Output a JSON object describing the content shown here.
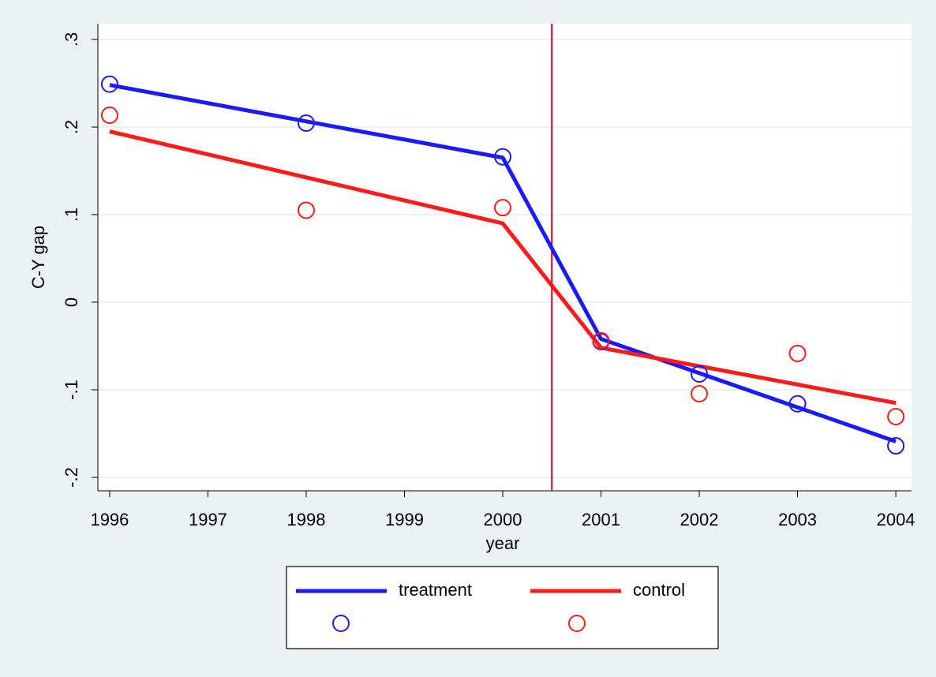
{
  "chart_data": {
    "type": "line",
    "x_label": "year",
    "y_label": "C-Y gap",
    "x": [
      1996,
      1998,
      2000,
      2001,
      2002,
      2003,
      2004
    ],
    "series": [
      {
        "name": "treatment",
        "color": "#1a1aff",
        "mark": "line",
        "values": [
          0.248,
          0.2065,
          0.165,
          -0.042,
          -0.081,
          -0.12,
          -0.159
        ]
      },
      {
        "name": "control",
        "color": "#ff1a1a",
        "mark": "line",
        "values": [
          0.195,
          0.1425,
          0.09,
          -0.052,
          -0.073,
          -0.094,
          -0.115
        ]
      },
      {
        "color": "#1a1aff",
        "mark": "circle",
        "values": [
          0.249,
          0.2045,
          0.166,
          -0.045,
          -0.082,
          -0.116,
          -0.164
        ]
      },
      {
        "color": "#ff1a1a",
        "mark": "circle",
        "values": [
          0.2135,
          0.105,
          0.108,
          -0.044,
          -0.1045,
          -0.0585,
          -0.1306
        ]
      }
    ],
    "vline": {
      "value": 2000.5,
      "color": "#c00020"
    },
    "xlim": [
      1995.88,
      2004.16
    ],
    "xticks": [
      1996,
      1997,
      1998,
      1999,
      2000,
      2001,
      2002,
      2003,
      2004
    ],
    "ylim": [
      -0.2153,
      0.318
    ],
    "yticks": [
      {
        "value": -0.2,
        "label": "-.2"
      },
      {
        "value": -0.1,
        "label": "-.1"
      },
      0,
      {
        "value": 0.1,
        "label": ".1"
      },
      {
        "value": 0.2,
        "label": ".2"
      },
      {
        "value": 0.3,
        "label": ".3"
      }
    ],
    "grid": true,
    "legend": "bottom"
  }
}
